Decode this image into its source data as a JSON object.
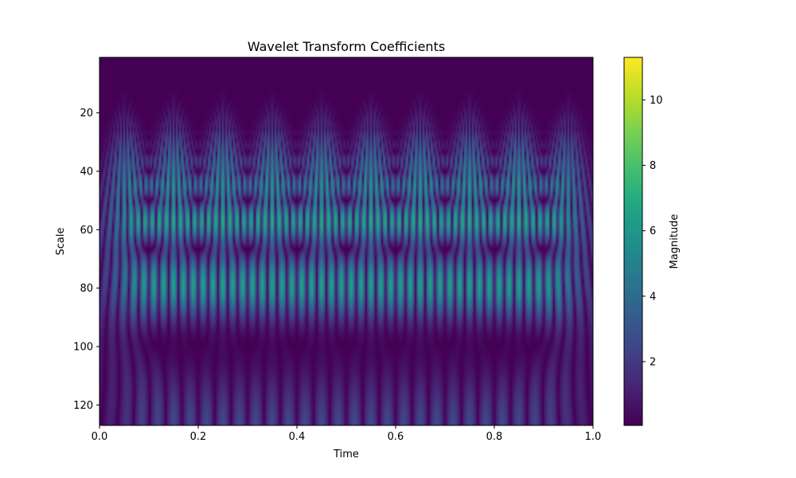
{
  "chart_data": {
    "type": "heatmap",
    "title": "Wavelet Transform Coefficients",
    "xlabel": "Time",
    "ylabel": "Scale",
    "xlim": [
      0,
      1
    ],
    "ylim": [
      1,
      127
    ],
    "y_inverted": true,
    "xticks": [
      "0.0",
      "0.2",
      "0.4",
      "0.6",
      "0.8",
      "1.0"
    ],
    "yticks": [
      "20",
      "40",
      "60",
      "80",
      "100",
      "120"
    ],
    "colorbar": {
      "label": "Magnitude",
      "range": [
        0.05,
        11.3
      ],
      "ticks": [
        "2",
        "4",
        "6",
        "8",
        "10"
      ],
      "colormap": "viridis"
    },
    "signal_peaks_time": [
      0.05,
      0.15,
      0.25,
      0.35,
      0.45,
      0.55,
      0.65,
      0.75,
      0.85,
      0.95
    ],
    "max_magnitude_scale": 50
  }
}
